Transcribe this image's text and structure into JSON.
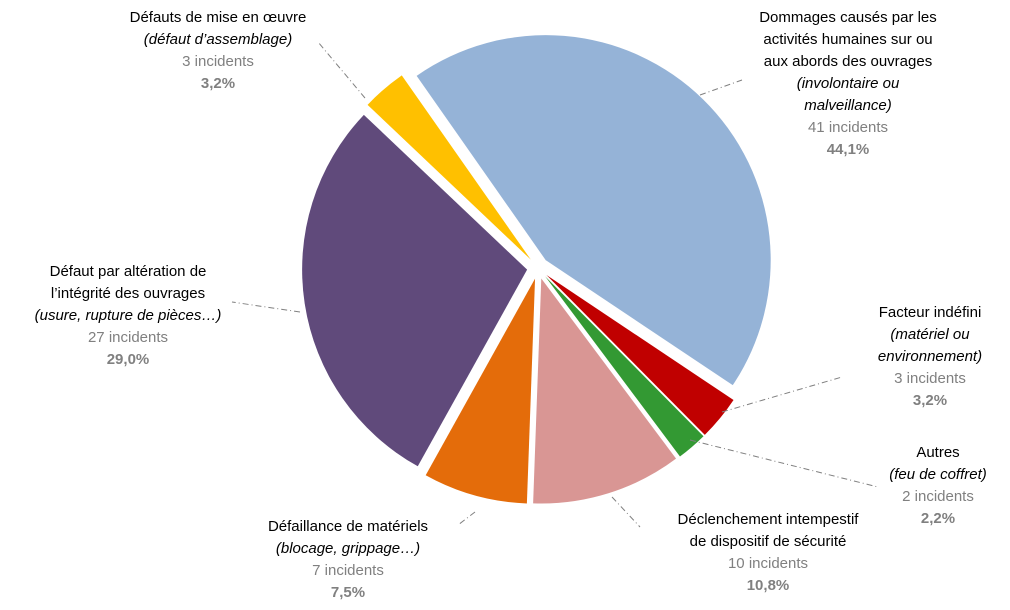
{
  "chart_data": {
    "type": "pie",
    "names": [
      [
        "Dommages causés par les",
        "activités humaines sur ou",
        "aux abords des ouvrages"
      ],
      [
        "Facteur indéfini"
      ],
      [
        "Autres"
      ],
      [
        "Déclenchement intempestif",
        "de dispositif de sécurité"
      ],
      [
        "Défaillance de matériels"
      ],
      [
        "Défaut par altération de",
        "l’intégrité des ouvrages"
      ],
      [
        "Défauts de mise en œuvre"
      ]
    ],
    "descriptions": [
      [
        "(involontaire ou",
        "malveillance)"
      ],
      [
        "(matériel ou",
        "environnement)"
      ],
      [
        "(feu de coffret)"
      ],
      [],
      [
        "(blocage, grippage…)"
      ],
      [
        "(usure, rupture de pièces…)"
      ],
      [
        "(défaut d’assemblage)"
      ]
    ],
    "incident_labels": [
      "41 incidents",
      "3 incidents",
      "2 incidents",
      "10 incidents",
      "7 incidents",
      "27 incidents",
      "3 incidents"
    ],
    "values": [
      44.1,
      3.2,
      2.2,
      10.8,
      7.5,
      29.0,
      3.2
    ],
    "value_labels": [
      "44,1%",
      "3,2%",
      "2,2%",
      "10,8%",
      "7,5%",
      "29,0%",
      "3,2%"
    ],
    "colors": [
      "#95b3d7",
      "#c00000",
      "#339933",
      "#d99694",
      "#e46c0a",
      "#604a7b",
      "#ffc000"
    ]
  }
}
